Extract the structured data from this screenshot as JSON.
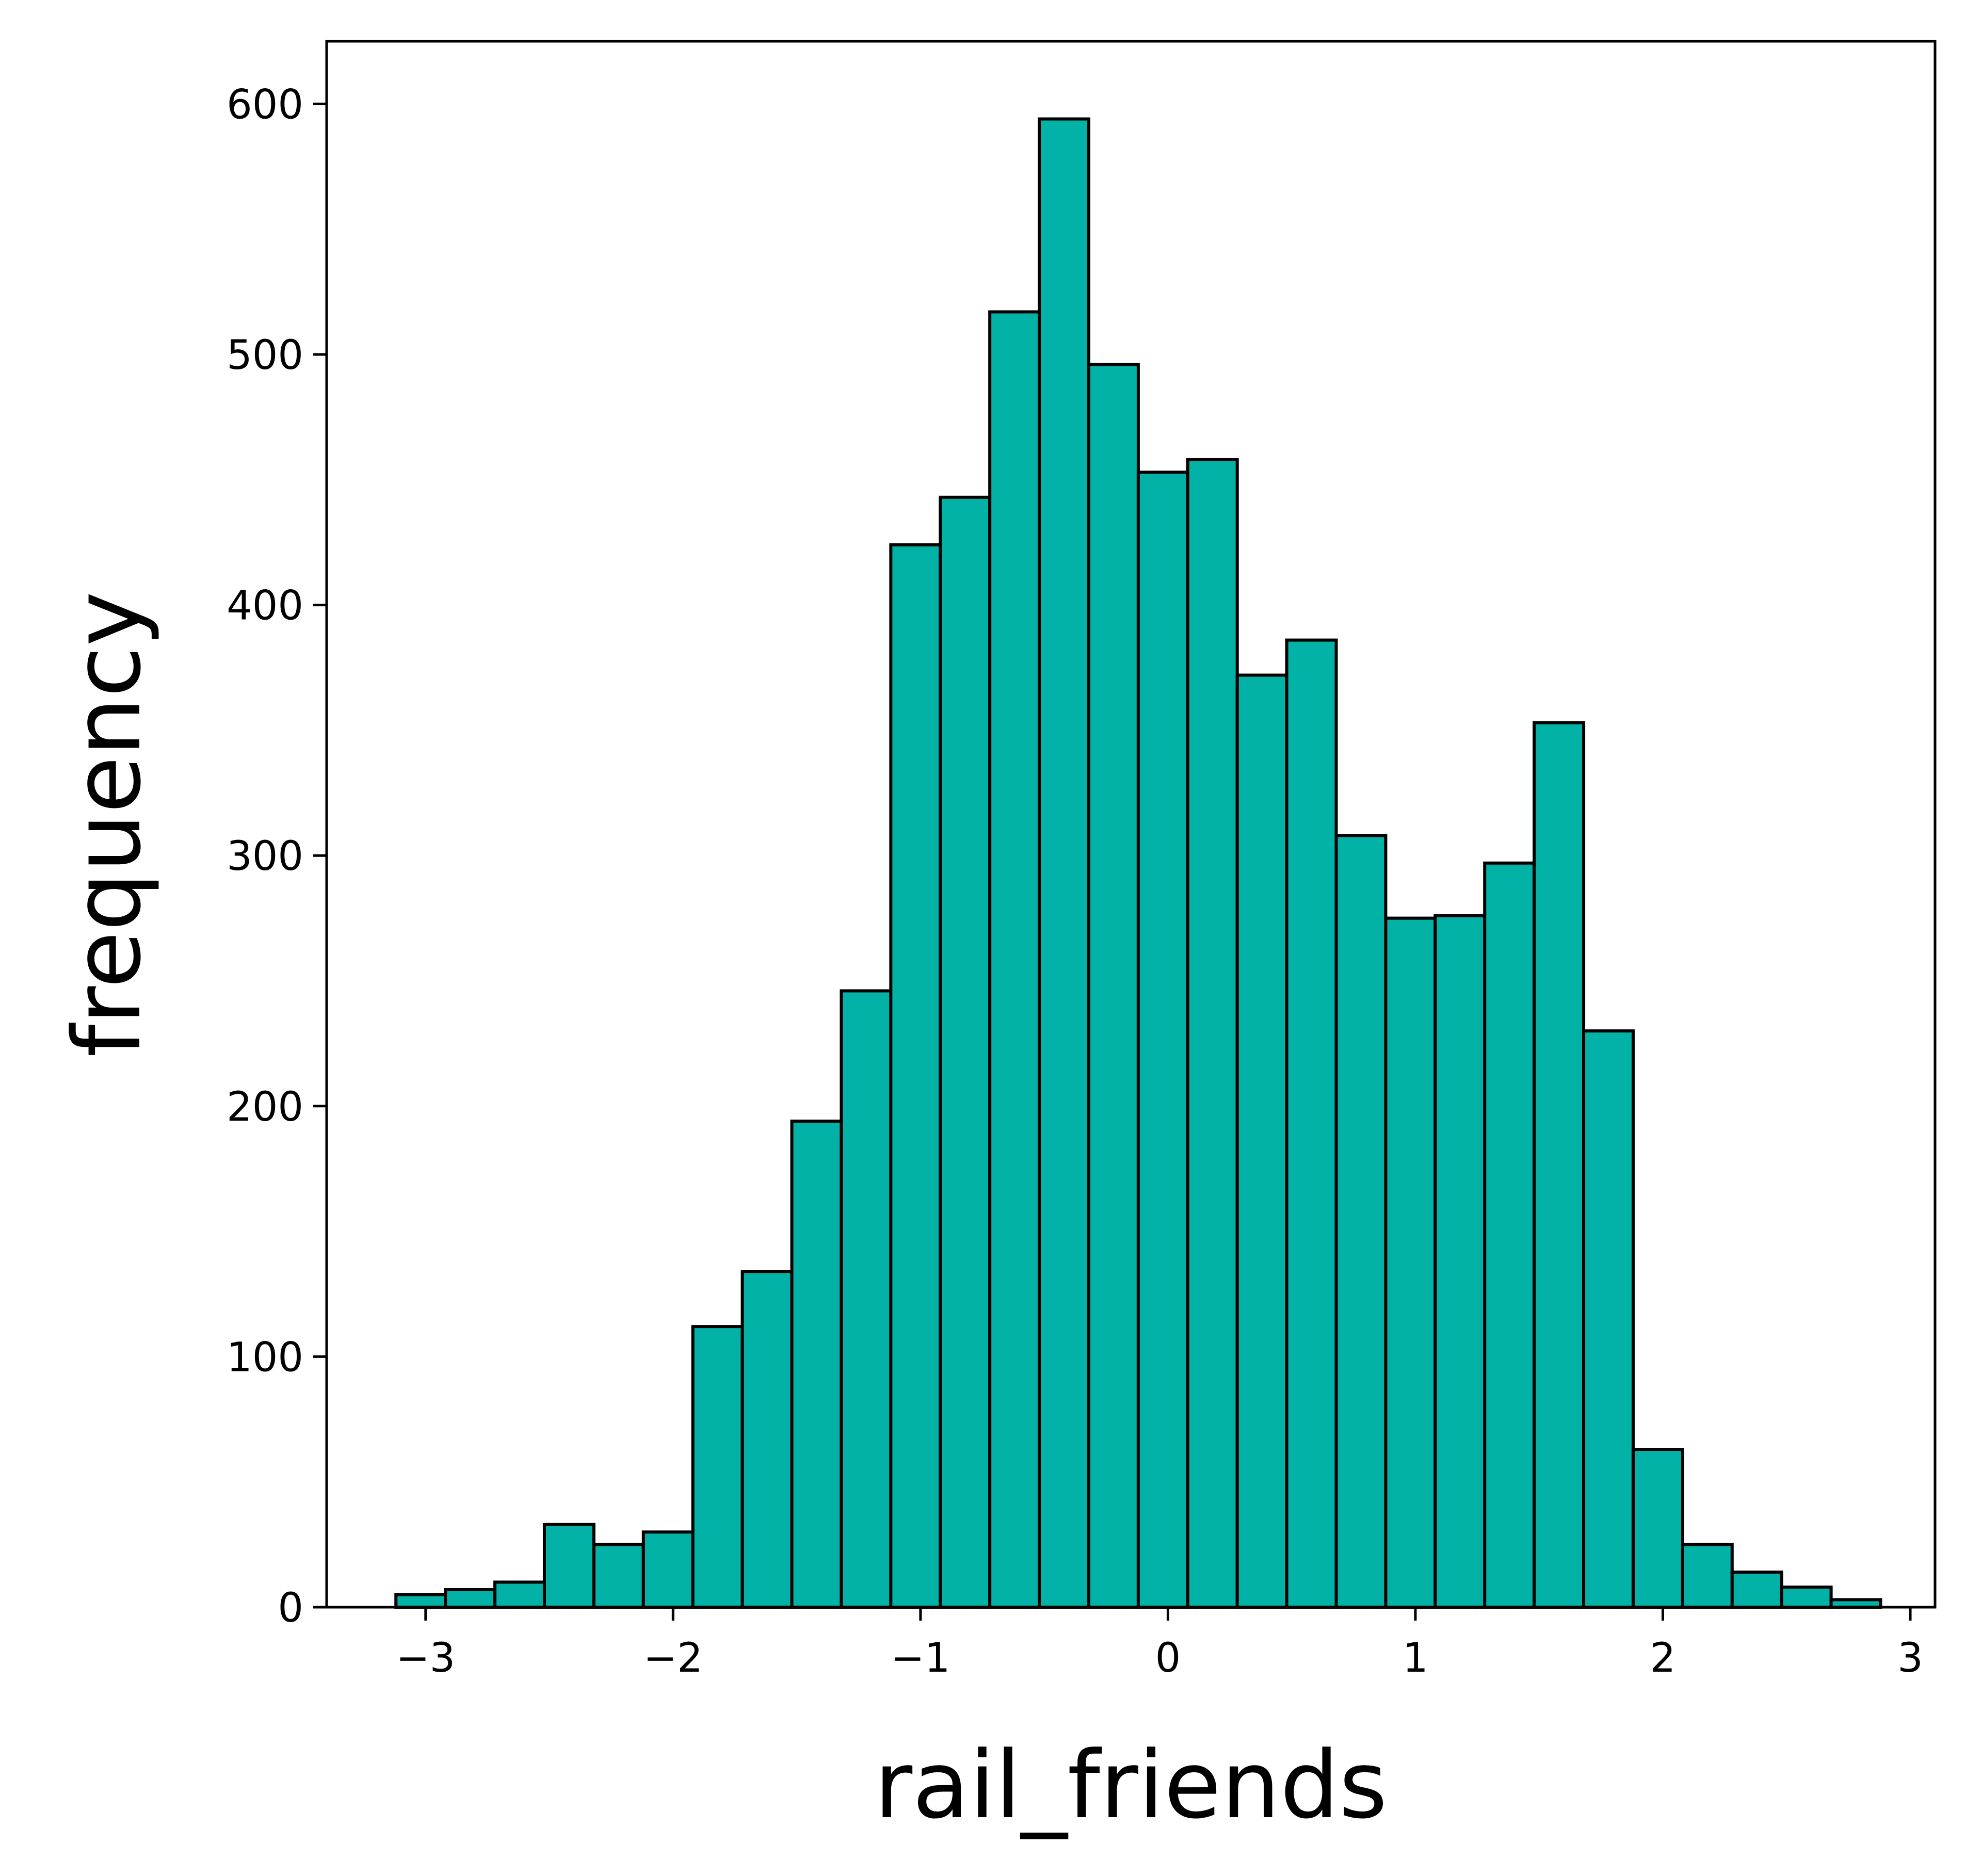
{
  "chart_data": {
    "type": "bar",
    "title": "",
    "xlabel": "rail_friends",
    "ylabel": "frequency",
    "xlim": [
      -3.4,
      3.1
    ],
    "ylim": [
      0,
      625
    ],
    "xticks": [
      -3,
      -2,
      -1,
      0,
      1,
      2,
      3
    ],
    "xtick_labels": [
      "−3",
      "−2",
      "−1",
      "0",
      "1",
      "2",
      "3"
    ],
    "yticks": [
      0,
      100,
      200,
      300,
      400,
      500,
      600
    ],
    "ytick_labels": [
      "0",
      "100",
      "200",
      "300",
      "400",
      "500",
      "600"
    ],
    "grid": false,
    "bar_color": "#02b2a6",
    "edge_color": "#000000",
    "bins": [
      {
        "x0": -3.12,
        "x1": -2.92,
        "count": 5
      },
      {
        "x0": -2.92,
        "x1": -2.72,
        "count": 7
      },
      {
        "x0": -2.72,
        "x1": -2.52,
        "count": 10
      },
      {
        "x0": -2.52,
        "x1": -2.32,
        "count": 33
      },
      {
        "x0": -2.32,
        "x1": -2.12,
        "count": 25
      },
      {
        "x0": -2.12,
        "x1": -1.92,
        "count": 30
      },
      {
        "x0": -1.92,
        "x1": -1.72,
        "count": 112
      },
      {
        "x0": -1.72,
        "x1": -1.52,
        "count": 134
      },
      {
        "x0": -1.52,
        "x1": -1.32,
        "count": 194
      },
      {
        "x0": -1.32,
        "x1": -1.12,
        "count": 246
      },
      {
        "x0": -1.12,
        "x1": -0.92,
        "count": 424
      },
      {
        "x0": -0.92,
        "x1": -0.72,
        "count": 443
      },
      {
        "x0": -0.72,
        "x1": -0.52,
        "count": 517
      },
      {
        "x0": -0.52,
        "x1": -0.32,
        "count": 594
      },
      {
        "x0": -0.32,
        "x1": -0.12,
        "count": 496
      },
      {
        "x0": -0.12,
        "x1": 0.08,
        "count": 453
      },
      {
        "x0": 0.08,
        "x1": 0.28,
        "count": 458
      },
      {
        "x0": 0.28,
        "x1": 0.48,
        "count": 372
      },
      {
        "x0": 0.48,
        "x1": 0.68,
        "count": 386
      },
      {
        "x0": 0.68,
        "x1": 0.88,
        "count": 308
      },
      {
        "x0": 0.88,
        "x1": 1.08,
        "count": 275
      },
      {
        "x0": 1.08,
        "x1": 1.28,
        "count": 276
      },
      {
        "x0": 1.28,
        "x1": 1.48,
        "count": 297
      },
      {
        "x0": 1.48,
        "x1": 1.68,
        "count": 353
      },
      {
        "x0": 1.68,
        "x1": 1.88,
        "count": 230
      },
      {
        "x0": 1.88,
        "x1": 2.08,
        "count": 63
      },
      {
        "x0": 2.08,
        "x1": 2.28,
        "count": 25
      },
      {
        "x0": 2.28,
        "x1": 2.48,
        "count": 14
      },
      {
        "x0": 2.48,
        "x1": 2.68,
        "count": 8
      },
      {
        "x0": 2.68,
        "x1": 2.88,
        "count": 3
      }
    ]
  }
}
